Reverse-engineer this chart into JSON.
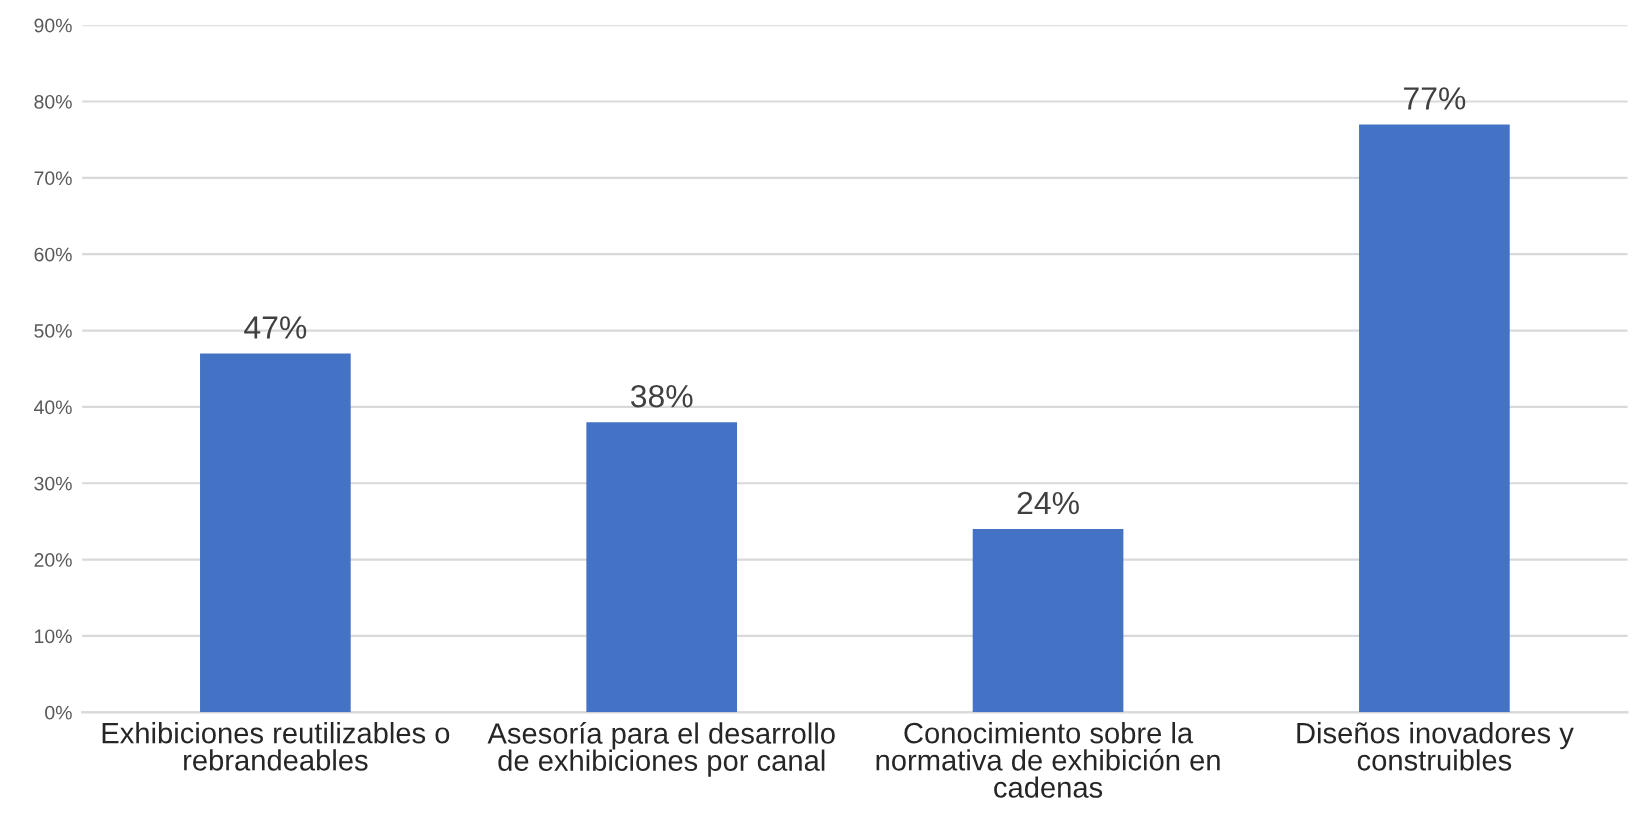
{
  "chart_data": {
    "type": "bar",
    "categories": [
      "Exhibiciones reutilizables o\nrebrandeables",
      "Asesoría para el desarrollo\nde exhibiciones por canal",
      "Conocimiento sobre la\nnormativa de exhibición en\ncadenas",
      "Diseños inovadores y\nconstruibles"
    ],
    "values": [
      47,
      38,
      24,
      77
    ],
    "value_labels": [
      "47%",
      "38%",
      "24%",
      "77%"
    ],
    "color": "#4472c4",
    "ylim": [
      0,
      90
    ],
    "yticks": [
      {
        "value": 0,
        "label": "0%"
      },
      {
        "value": 10,
        "label": "10%"
      },
      {
        "value": 20,
        "label": "20%"
      },
      {
        "value": 30,
        "label": "30%"
      },
      {
        "value": 40,
        "label": "40%"
      },
      {
        "value": 50,
        "label": "50%"
      },
      {
        "value": 60,
        "label": "60%"
      },
      {
        "value": 70,
        "label": "70%"
      },
      {
        "value": 80,
        "label": "80%"
      },
      {
        "value": 90,
        "label": "90%"
      }
    ],
    "grid": "y",
    "legend": false
  }
}
